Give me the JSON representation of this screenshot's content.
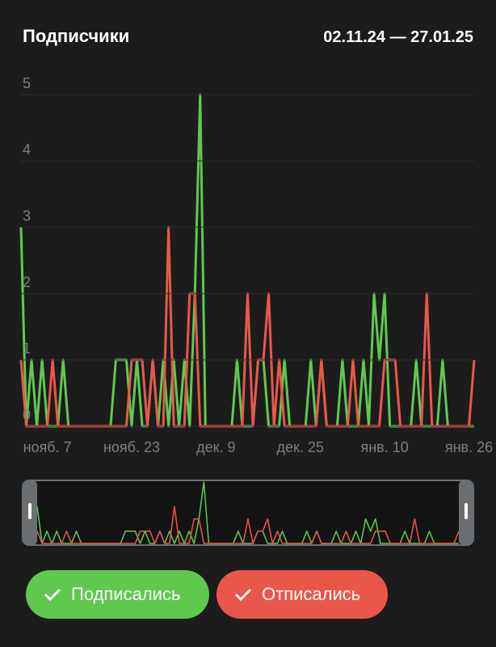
{
  "chart_data": {
    "type": "line",
    "title": "Подписчики",
    "subtitle": "02.11.24 — 27.01.25",
    "categories": [
      null,
      null,
      null,
      null,
      null,
      "нояб. 7",
      null,
      null,
      null,
      null,
      null,
      null,
      null,
      null,
      null,
      null,
      null,
      null,
      null,
      null,
      null,
      "нояб. 23",
      null,
      null,
      null,
      null,
      null,
      null,
      null,
      null,
      null,
      null,
      null,
      null,
      null,
      null,
      null,
      "дек. 9",
      null,
      null,
      null,
      null,
      null,
      null,
      null,
      null,
      null,
      null,
      null,
      null,
      null,
      null,
      null,
      "дек. 25",
      null,
      null,
      null,
      null,
      null,
      null,
      null,
      null,
      null,
      null,
      null,
      null,
      null,
      null,
      null,
      "янв. 10",
      null,
      null,
      null,
      null,
      null,
      null,
      null,
      null,
      null,
      null,
      null,
      null,
      null,
      null,
      null,
      "янв. 26",
      null
    ],
    "series": [
      {
        "name": "Подписались",
        "color": "#5fc94e",
        "values": [
          3,
          0,
          1,
          0,
          1,
          0,
          0,
          0,
          1,
          0,
          0,
          0,
          0,
          0,
          0,
          0,
          0,
          0,
          1,
          1,
          1,
          0,
          1,
          0,
          0,
          1,
          0,
          1,
          0,
          1,
          0,
          1,
          0,
          2,
          5,
          0,
          0,
          0,
          0,
          0,
          0,
          1,
          0,
          0,
          0,
          1,
          1,
          0,
          0,
          0,
          1,
          0,
          0,
          0,
          0,
          1,
          0,
          1,
          0,
          0,
          0,
          1,
          0,
          0,
          0,
          1,
          0,
          2,
          1,
          2,
          0,
          0,
          0,
          0,
          0,
          1,
          0,
          0,
          0,
          0,
          1,
          0,
          0,
          0,
          0,
          0,
          0
        ]
      },
      {
        "name": "Отписались",
        "color": "#e9574a",
        "values": [
          1,
          0,
          0,
          0,
          0,
          0,
          1,
          0,
          0,
          0,
          0,
          0,
          0,
          0,
          0,
          0,
          0,
          0,
          0,
          0,
          0,
          1,
          1,
          1,
          0,
          1,
          0,
          0,
          3,
          0,
          0,
          0,
          2,
          2,
          0,
          0,
          0,
          0,
          0,
          0,
          0,
          0,
          0,
          2,
          0,
          1,
          1,
          2,
          0,
          1,
          0,
          0,
          0,
          0,
          0,
          0,
          0,
          1,
          0,
          0,
          0,
          0,
          0,
          1,
          0,
          0,
          0,
          0,
          0,
          1,
          1,
          1,
          0,
          0,
          0,
          0,
          0,
          2,
          0,
          0,
          0,
          0,
          0,
          0,
          0,
          0,
          1
        ]
      }
    ],
    "ylim": [
      0,
      5
    ],
    "yticks": [
      0,
      1,
      2,
      3,
      4,
      5
    ],
    "grid": true
  }
}
